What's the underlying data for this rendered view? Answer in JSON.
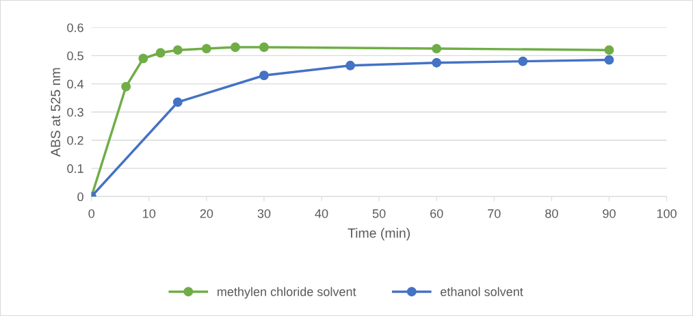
{
  "chart_data": {
    "type": "line",
    "xlabel": "Time (min)",
    "ylabel": "ABS at 525 nm",
    "xlim": [
      0,
      100
    ],
    "xticks": [
      0,
      10,
      20,
      30,
      40,
      50,
      60,
      70,
      80,
      90,
      100
    ],
    "ylim": [
      0,
      0.6
    ],
    "yticks": [
      {
        "value": 0,
        "label": "0"
      },
      0.1,
      0.2,
      0.3,
      0.4,
      0.5,
      0.6
    ],
    "grid": "y",
    "legend": "bottom",
    "marker": "circle",
    "line_style": "solid",
    "series": [
      {
        "name": "methylen chloride solvent",
        "color": "#70ad47",
        "x": [
          0,
          6,
          9,
          12,
          15,
          20,
          25,
          30,
          60,
          90
        ],
        "values": [
          0,
          0.39,
          0.49,
          0.51,
          0.52,
          0.525,
          0.53,
          0.53,
          0.525,
          0.52
        ]
      },
      {
        "name": "ethanol solvent",
        "color": "#4472c4",
        "x": [
          0,
          15,
          30,
          45,
          60,
          75,
          90
        ],
        "values": [
          0,
          0.335,
          0.43,
          0.465,
          0.475,
          0.48,
          0.485
        ]
      }
    ]
  }
}
